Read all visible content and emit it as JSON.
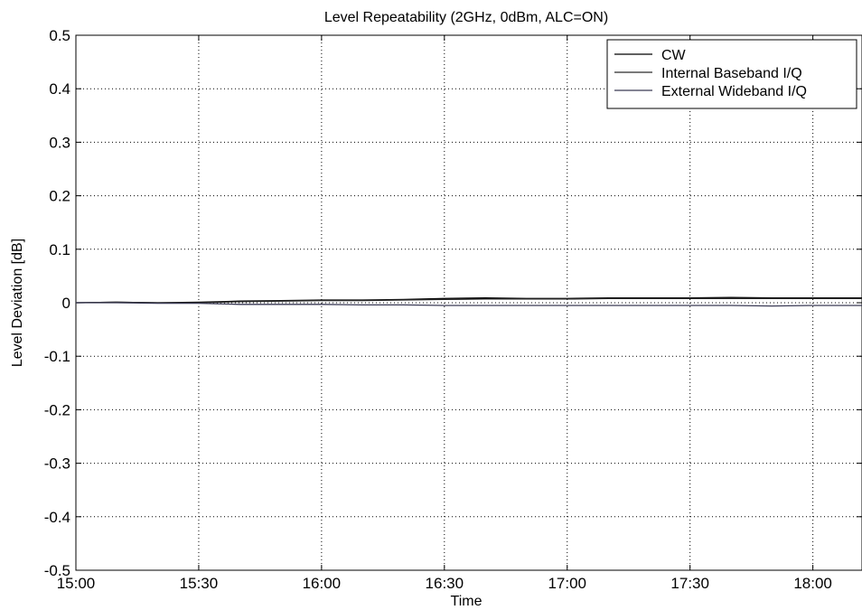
{
  "chart_data": {
    "type": "line",
    "title": "Level Repeatability (2GHz, 0dBm, ALC=ON)",
    "xlabel": "Time",
    "ylabel": "Level Deviation [dB]",
    "xlim": [
      "15:00",
      "18:12"
    ],
    "ylim": [
      -0.5,
      0.5
    ],
    "xticks": [
      "15:00",
      "15:30",
      "16:00",
      "16:30",
      "17:00",
      "17:30",
      "18:00"
    ],
    "yticks": [
      "0.5",
      "0.4",
      "0.3",
      "0.2",
      "0.1",
      "0",
      "-0.1",
      "-0.2",
      "-0.3",
      "-0.4",
      "-0.5"
    ],
    "grid": true,
    "legend_position": "top-right",
    "x": [
      "15:00",
      "15:10",
      "15:20",
      "15:30",
      "15:40",
      "15:50",
      "16:00",
      "16:10",
      "16:20",
      "16:30",
      "16:40",
      "16:50",
      "17:00",
      "17:10",
      "17:20",
      "17:30",
      "17:40",
      "17:50",
      "18:00",
      "18:12"
    ],
    "series": [
      {
        "name": "CW",
        "color": "#000000",
        "values": [
          0.0,
          0.001,
          0.0,
          0.001,
          0.003,
          0.004,
          0.005,
          0.005,
          0.006,
          0.008,
          0.009,
          0.008,
          0.008,
          0.009,
          0.009,
          0.009,
          0.01,
          0.009,
          0.009,
          0.009
        ]
      },
      {
        "name": "Internal Baseband I/Q",
        "color": "#2a2a2a",
        "values": [
          0.0,
          0.001,
          0.0,
          0.0,
          0.002,
          0.003,
          0.004,
          0.004,
          0.005,
          0.006,
          0.007,
          0.007,
          0.007,
          0.008,
          0.008,
          0.008,
          0.008,
          0.008,
          0.008,
          0.008
        ]
      },
      {
        "name": "External Wideband I/Q",
        "color": "#3a3a55",
        "values": [
          0.0,
          0.0,
          -0.001,
          -0.001,
          -0.003,
          -0.003,
          -0.003,
          -0.004,
          -0.004,
          -0.005,
          -0.005,
          -0.005,
          -0.005,
          -0.005,
          -0.005,
          -0.005,
          -0.005,
          -0.006,
          -0.005,
          -0.005
        ]
      }
    ]
  }
}
